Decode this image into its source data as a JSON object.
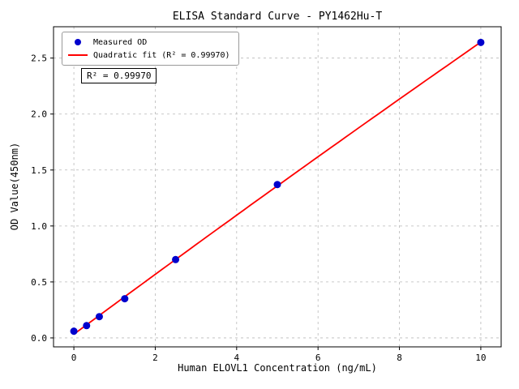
{
  "chart_data": {
    "type": "scatter",
    "title": "ELISA Standard Curve - PY1462Hu-T",
    "xlabel": "Human ELOVL1 Concentration (ng/mL)",
    "ylabel": "OD Value(450nm)",
    "xlim": [
      -0.5,
      10.5
    ],
    "ylim": [
      -0.08,
      2.78
    ],
    "xticks": [
      0,
      2,
      4,
      6,
      8,
      10
    ],
    "yticks": [
      0.0,
      0.5,
      1.0,
      1.5,
      2.0,
      2.5
    ],
    "grid": true,
    "legend_position": "upper-left",
    "annotation": "R² = 0.99970",
    "series": [
      {
        "name": "Measured OD",
        "type": "scatter",
        "color": "#0000cd",
        "x": [
          0,
          0.3125,
          0.625,
          1.25,
          2.5,
          5,
          10
        ],
        "y": [
          0.06,
          0.11,
          0.19,
          0.35,
          0.7,
          1.37,
          2.64
        ]
      },
      {
        "name": "Quadratic fit (R² = 0.99970)",
        "type": "line",
        "color": "#ff0000"
      }
    ]
  }
}
